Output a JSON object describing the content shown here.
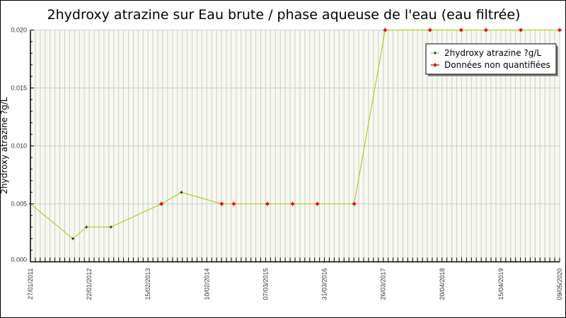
{
  "chart_data": {
    "type": "line",
    "title": "2hydroxy atrazine sur Eau brute / phase aqueuse de l'eau (eau filtrée)",
    "xlabel": "",
    "ylabel": "2hydroxy atrazine ?g/L",
    "ylim": [
      0,
      0.02
    ],
    "yticks": [
      "0.000",
      "0.005",
      "0.010",
      "0.015",
      "0.020"
    ],
    "xticks": [
      "27/01/2011",
      "22/01/2012",
      "15/02/2013",
      "10/02/2014",
      "07/03/2015",
      "31/03/2016",
      "26/03/2017",
      "20/04/2018",
      "15/04/2019",
      "09/05/2020"
    ],
    "grid": true,
    "legend_position": "top-right",
    "colors": {
      "line": "#99cc00",
      "quantified": "#000000",
      "non_quantified": "#ff0000",
      "plot_bg": "#f8f8f0",
      "grid": "#cccccc"
    },
    "series": [
      {
        "name": "2hydroxy atrazine ?g/L",
        "points": [
          {
            "x": "27/01/2011",
            "y": 0.005,
            "q": true
          },
          {
            "x": "14/10/2011",
            "y": 0.002,
            "q": true
          },
          {
            "x": "05/01/2012",
            "y": 0.003,
            "q": true
          },
          {
            "x": "14/06/2012",
            "y": 0.003,
            "q": true
          },
          {
            "x": "08/05/2013",
            "y": 0.005,
            "q": false
          },
          {
            "x": "07/09/2013",
            "y": 0.006,
            "q": true
          },
          {
            "x": "20/05/2014",
            "y": 0.005,
            "q": false
          },
          {
            "x": "08/08/2014",
            "y": 0.005,
            "q": false
          },
          {
            "x": "19/03/2015",
            "y": 0.005,
            "q": false
          },
          {
            "x": "02/09/2015",
            "y": 0.005,
            "q": false
          },
          {
            "x": "13/02/2016",
            "y": 0.005,
            "q": false
          },
          {
            "x": "29/09/2016",
            "y": 0.005,
            "q": false
          },
          {
            "x": "08/04/2017",
            "y": 0.02,
            "q": false
          },
          {
            "x": "30/01/2018",
            "y": 0.02,
            "q": false
          },
          {
            "x": "15/08/2018",
            "y": 0.02,
            "q": false
          },
          {
            "x": "14/01/2019",
            "y": 0.02,
            "q": false
          },
          {
            "x": "25/08/2019",
            "y": 0.02,
            "q": false
          },
          {
            "x": "09/05/2020",
            "y": 0.02,
            "q": false
          }
        ]
      }
    ],
    "legend": [
      "2hydroxy atrazine ?g/L",
      "Données non quantifiées"
    ]
  }
}
